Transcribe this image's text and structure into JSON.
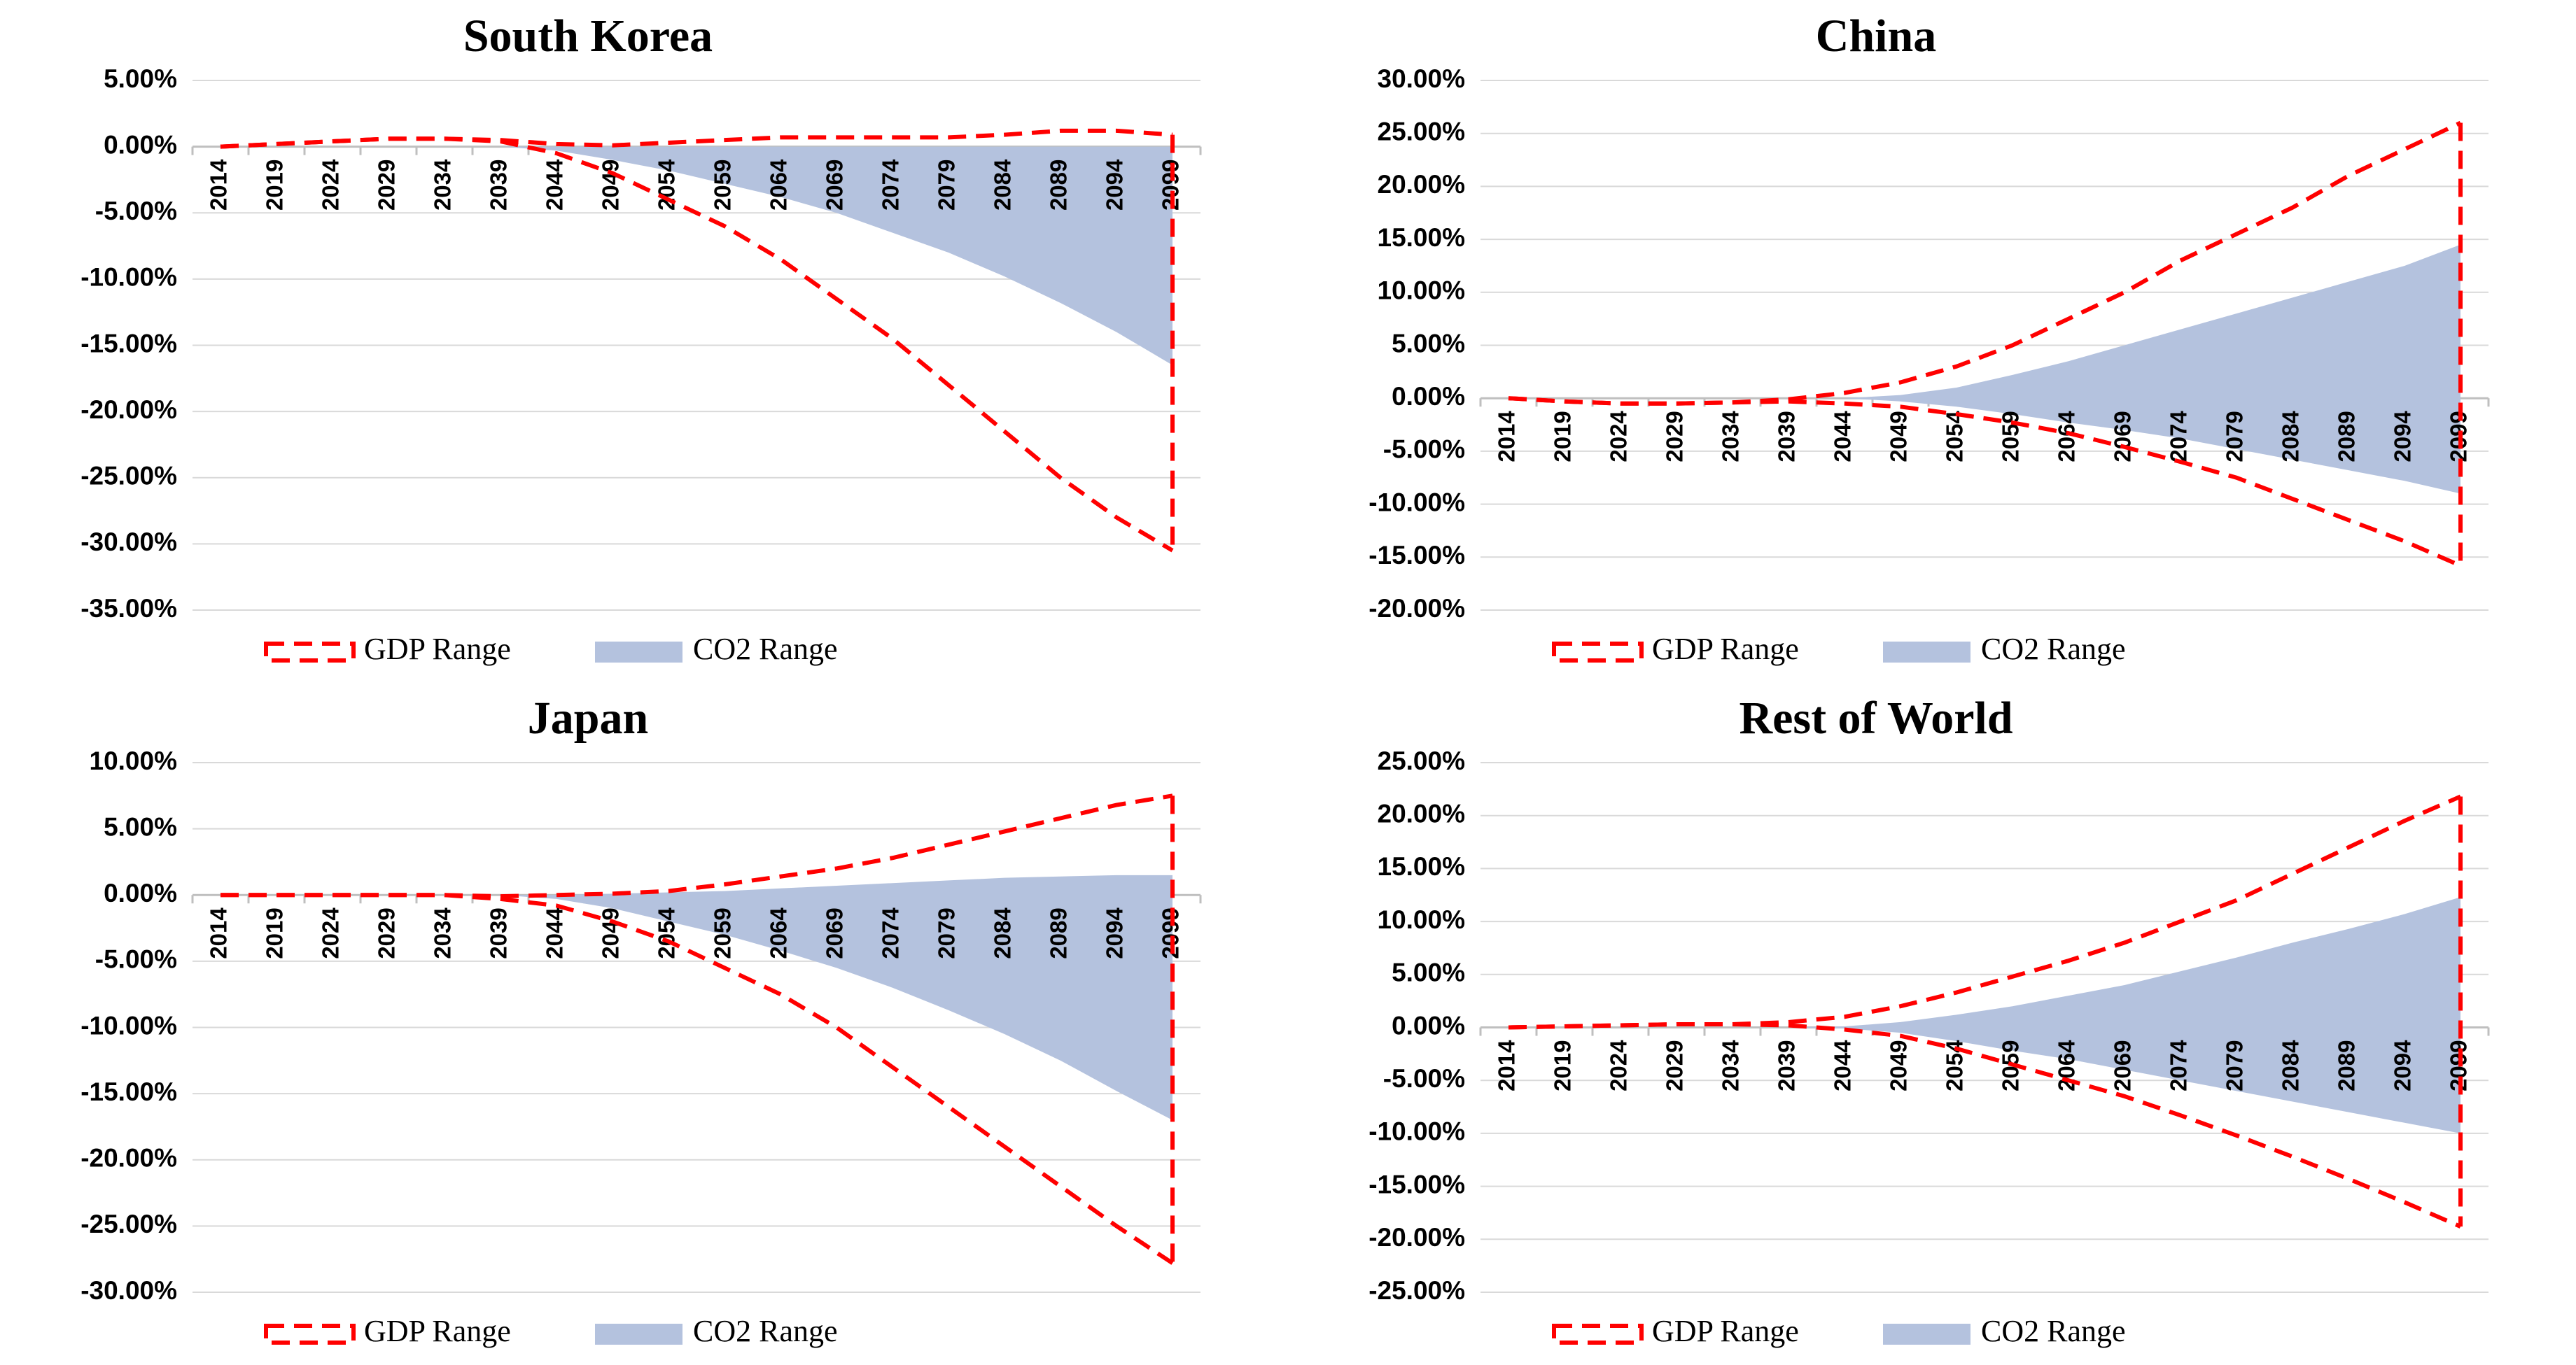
{
  "chart_data": [
    {
      "type": "range",
      "title": "South Korea",
      "categories": [
        "2014",
        "2019",
        "2024",
        "2029",
        "2034",
        "2039",
        "2044",
        "2049",
        "2054",
        "2059",
        "2064",
        "2069",
        "2074",
        "2079",
        "2084",
        "2089",
        "2094",
        "2099"
      ],
      "series": [
        {
          "name": "GDP Range",
          "color": "#ff0000",
          "style": "dashed",
          "high": [
            0,
            0.2,
            0.4,
            0.6,
            0.6,
            0.5,
            0.2,
            0.1,
            0.3,
            0.5,
            0.7,
            0.7,
            0.7,
            0.7,
            0.9,
            1.2,
            1.2,
            0.9
          ],
          "low": [
            0,
            0.2,
            0.4,
            0.6,
            0.6,
            0.4,
            -0.5,
            -2,
            -4,
            -6,
            -8.5,
            -11.5,
            -14.5,
            -18,
            -21.5,
            -25,
            -28,
            -30.5
          ]
        },
        {
          "name": "CO2 Range",
          "color": "#b4c2de",
          "style": "area",
          "high": [
            0,
            0,
            0,
            0,
            0,
            0,
            0,
            0,
            0,
            0,
            0,
            0,
            0,
            0,
            0,
            0,
            0,
            0
          ],
          "low": [
            0,
            0,
            0,
            0,
            0,
            0,
            -0.3,
            -1,
            -1.8,
            -2.8,
            -3.8,
            -5,
            -6.5,
            -8,
            -9.8,
            -11.8,
            -14,
            -16.5
          ]
        }
      ],
      "ylim": [
        -35,
        5
      ],
      "yticks": [
        {
          "value": 5,
          "label": "5.00%"
        },
        {
          "value": 0,
          "label": "0.00%"
        },
        {
          "value": -5,
          "label": "-5.00%"
        },
        {
          "value": -10,
          "label": "-10.00%"
        },
        {
          "value": -15,
          "label": "-15.00%"
        },
        {
          "value": -20,
          "label": "-20.00%"
        },
        {
          "value": -25,
          "label": "-25.00%"
        },
        {
          "value": -30,
          "label": "-30.00%"
        },
        {
          "value": -35,
          "label": "-35.00%"
        }
      ],
      "grid": true,
      "legend": "bottom"
    },
    {
      "type": "range",
      "title": "China",
      "categories": [
        "2014",
        "2019",
        "2024",
        "2029",
        "2034",
        "2039",
        "2044",
        "2049",
        "2054",
        "2059",
        "2064",
        "2069",
        "2074",
        "2079",
        "2084",
        "2089",
        "2094",
        "2099"
      ],
      "series": [
        {
          "name": "GDP Range",
          "color": "#ff0000",
          "style": "dashed",
          "high": [
            0,
            -0.3,
            -0.5,
            -0.5,
            -0.4,
            -0.1,
            0.5,
            1.5,
            3,
            5,
            7.5,
            10,
            13,
            15.5,
            18,
            21,
            23.5,
            26
          ],
          "low": [
            0,
            -0.3,
            -0.5,
            -0.5,
            -0.4,
            -0.3,
            -0.5,
            -0.8,
            -1.5,
            -2.3,
            -3.3,
            -4.6,
            -6,
            -7.5,
            -9.5,
            -11.5,
            -13.5,
            -15.8
          ]
        },
        {
          "name": "CO2 Range",
          "color": "#b4c2de",
          "style": "area",
          "high": [
            0,
            0,
            0,
            0,
            0,
            0,
            0,
            0.3,
            1,
            2.2,
            3.5,
            5,
            6.5,
            8,
            9.5,
            11,
            12.5,
            14.5
          ],
          "low": [
            0,
            0,
            0,
            0,
            0,
            0,
            0,
            -0.3,
            -0.8,
            -1.5,
            -2.3,
            -3,
            -3.8,
            -4.8,
            -5.8,
            -6.8,
            -7.8,
            -9
          ]
        }
      ],
      "ylim": [
        -20,
        30
      ],
      "yticks": [
        {
          "value": 30,
          "label": "30.00%"
        },
        {
          "value": 25,
          "label": "25.00%"
        },
        {
          "value": 20,
          "label": "20.00%"
        },
        {
          "value": 15,
          "label": "15.00%"
        },
        {
          "value": 10,
          "label": "10.00%"
        },
        {
          "value": 5,
          "label": "5.00%"
        },
        {
          "value": 0,
          "label": "0.00%"
        },
        {
          "value": -5,
          "label": "-5.00%"
        },
        {
          "value": -10,
          "label": "-10.00%"
        },
        {
          "value": -15,
          "label": "-15.00%"
        },
        {
          "value": -20,
          "label": "-20.00%"
        }
      ],
      "grid": true,
      "legend": "bottom"
    },
    {
      "type": "range",
      "title": "Japan",
      "categories": [
        "2014",
        "2019",
        "2024",
        "2029",
        "2034",
        "2039",
        "2044",
        "2049",
        "2054",
        "2059",
        "2064",
        "2069",
        "2074",
        "2079",
        "2084",
        "2089",
        "2094",
        "2099"
      ],
      "series": [
        {
          "name": "GDP Range",
          "color": "#ff0000",
          "style": "dashed",
          "high": [
            0,
            0,
            0,
            0,
            0,
            -0.1,
            0,
            0.1,
            0.3,
            0.8,
            1.4,
            2,
            2.8,
            3.8,
            4.8,
            5.8,
            6.8,
            7.5
          ],
          "low": [
            0,
            0,
            0,
            0,
            0,
            -0.3,
            -0.8,
            -2,
            -3.5,
            -5.5,
            -7.5,
            -10,
            -13,
            -16,
            -19,
            -22,
            -25,
            -27.8
          ]
        },
        {
          "name": "CO2 Range",
          "color": "#b4c2de",
          "style": "area",
          "high": [
            0,
            0,
            0,
            0,
            0,
            0,
            0,
            0.1,
            0.2,
            0.3,
            0.5,
            0.7,
            0.9,
            1.1,
            1.3,
            1.4,
            1.5,
            1.5
          ],
          "low": [
            0,
            0,
            0,
            0,
            0,
            0,
            -0.3,
            -1,
            -2,
            -3,
            -4.2,
            -5.5,
            -7,
            -8.7,
            -10.5,
            -12.5,
            -14.8,
            -17
          ]
        }
      ],
      "ylim": [
        -30,
        10
      ],
      "yticks": [
        {
          "value": 10,
          "label": "10.00%"
        },
        {
          "value": 5,
          "label": "5.00%"
        },
        {
          "value": 0,
          "label": "0.00%"
        },
        {
          "value": -5,
          "label": "-5.00%"
        },
        {
          "value": -10,
          "label": "-10.00%"
        },
        {
          "value": -15,
          "label": "-15.00%"
        },
        {
          "value": -20,
          "label": "-20.00%"
        },
        {
          "value": -25,
          "label": "-25.00%"
        },
        {
          "value": -30,
          "label": "-30.00%"
        }
      ],
      "grid": true,
      "legend": "bottom"
    },
    {
      "type": "range",
      "title": "Rest of World",
      "categories": [
        "2014",
        "2019",
        "2024",
        "2029",
        "2034",
        "2039",
        "2044",
        "2049",
        "2054",
        "2059",
        "2064",
        "2069",
        "2074",
        "2079",
        "2084",
        "2089",
        "2094",
        "2099"
      ],
      "series": [
        {
          "name": "GDP Range",
          "color": "#ff0000",
          "style": "dashed",
          "high": [
            0,
            0.1,
            0.2,
            0.3,
            0.3,
            0.5,
            1,
            2,
            3.3,
            4.8,
            6.3,
            8,
            10,
            12,
            14.5,
            17,
            19.5,
            21.8
          ],
          "low": [
            0,
            0.1,
            0.2,
            0.3,
            0.3,
            0.2,
            -0.2,
            -0.8,
            -2,
            -3.5,
            -5,
            -6.5,
            -8.3,
            -10.2,
            -12.2,
            -14.3,
            -16.5,
            -18.8
          ]
        },
        {
          "name": "CO2 Range",
          "color": "#b4c2de",
          "style": "area",
          "high": [
            0,
            0,
            0,
            0,
            0,
            0,
            0.1,
            0.5,
            1.2,
            2,
            3,
            4,
            5.3,
            6.6,
            8,
            9.3,
            10.7,
            12.3
          ],
          "low": [
            0,
            0,
            0,
            0,
            0,
            0,
            -0.1,
            -0.5,
            -1.3,
            -2.2,
            -3,
            -4,
            -5,
            -6,
            -7,
            -8,
            -9,
            -10
          ]
        }
      ],
      "ylim": [
        -25,
        25
      ],
      "yticks": [
        {
          "value": 25,
          "label": "25.00%"
        },
        {
          "value": 20,
          "label": "20.00%"
        },
        {
          "value": 15,
          "label": "15.00%"
        },
        {
          "value": 10,
          "label": "10.00%"
        },
        {
          "value": 5,
          "label": "5.00%"
        },
        {
          "value": 0,
          "label": "0.00%"
        },
        {
          "value": -5,
          "label": "-5.00%"
        },
        {
          "value": -10,
          "label": "-10.00%"
        },
        {
          "value": -15,
          "label": "-15.00%"
        },
        {
          "value": -20,
          "label": "-20.00%"
        },
        {
          "value": -25,
          "label": "-25.00%"
        }
      ],
      "grid": true,
      "legend": "bottom"
    }
  ]
}
